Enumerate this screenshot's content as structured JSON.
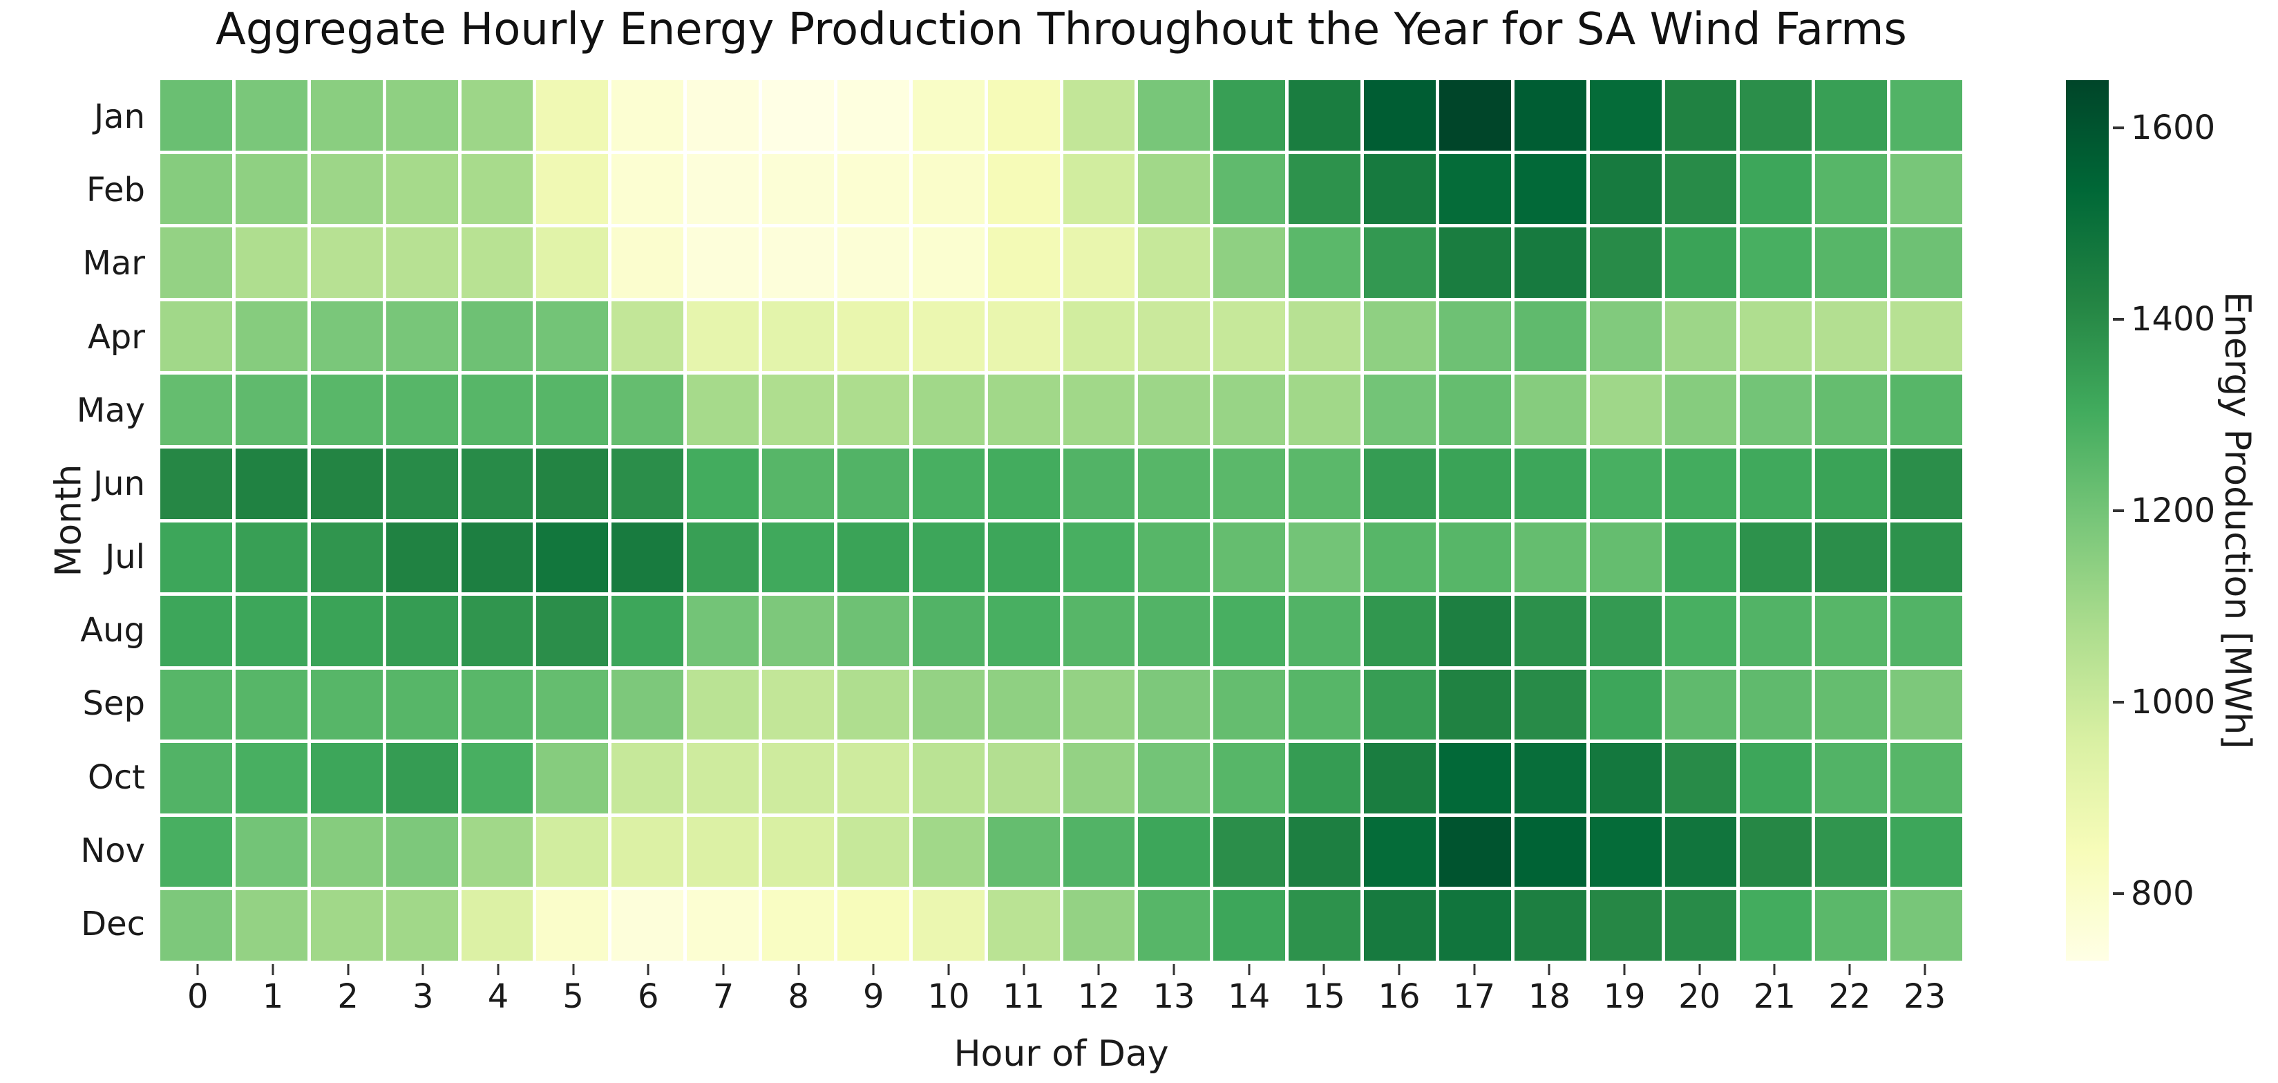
{
  "chart_data": {
    "type": "heatmap",
    "title": "Aggregate Hourly Energy Production Throughout the Year for SA Wind Farms",
    "xlabel": "Hour of Day",
    "ylabel": "Month",
    "colorbar_label": "Energy Production [MWh]",
    "x_labels": [
      "0",
      "1",
      "2",
      "3",
      "4",
      "5",
      "6",
      "7",
      "8",
      "9",
      "10",
      "11",
      "12",
      "13",
      "14",
      "15",
      "16",
      "17",
      "18",
      "19",
      "20",
      "21",
      "22",
      "23"
    ],
    "y_labels": [
      "Jan",
      "Feb",
      "Mar",
      "Apr",
      "May",
      "Jun",
      "Jul",
      "Aug",
      "Sep",
      "Oct",
      "Nov",
      "Dec"
    ],
    "vmin": 730,
    "vmax": 1650,
    "colorbar_ticks": [
      800,
      1000,
      1200,
      1400,
      1600
    ],
    "legend_position": "right",
    "grid": false,
    "colormap": {
      "name": "YlGn",
      "stops": [
        [
          0.0,
          "#ffffe5"
        ],
        [
          0.125,
          "#f7fcb9"
        ],
        [
          0.25,
          "#d9f0a3"
        ],
        [
          0.375,
          "#addd8e"
        ],
        [
          0.5,
          "#78c679"
        ],
        [
          0.625,
          "#41ab5d"
        ],
        [
          0.75,
          "#238443"
        ],
        [
          0.875,
          "#006837"
        ],
        [
          1.0,
          "#004529"
        ]
      ]
    },
    "values": [
      [
        1220,
        1185,
        1150,
        1140,
        1110,
        870,
        780,
        750,
        730,
        745,
        810,
        850,
        1020,
        1190,
        1340,
        1450,
        1570,
        1650,
        1570,
        1520,
        1430,
        1390,
        1340,
        1270
      ],
      [
        1160,
        1140,
        1110,
        1090,
        1085,
        870,
        780,
        760,
        770,
        780,
        800,
        850,
        980,
        1100,
        1240,
        1380,
        1460,
        1520,
        1530,
        1460,
        1400,
        1320,
        1260,
        1190
      ],
      [
        1130,
        1070,
        1050,
        1050,
        1045,
        930,
        790,
        760,
        760,
        770,
        785,
        860,
        900,
        1010,
        1140,
        1250,
        1360,
        1450,
        1460,
        1400,
        1330,
        1290,
        1260,
        1210
      ],
      [
        1100,
        1160,
        1185,
        1190,
        1210,
        1200,
        1020,
        910,
        920,
        900,
        890,
        900,
        980,
        1000,
        1010,
        1050,
        1140,
        1210,
        1240,
        1170,
        1110,
        1070,
        1060,
        1050
      ],
      [
        1230,
        1240,
        1255,
        1260,
        1260,
        1260,
        1230,
        1090,
        1070,
        1075,
        1100,
        1100,
        1100,
        1110,
        1120,
        1100,
        1200,
        1230,
        1160,
        1105,
        1160,
        1200,
        1230,
        1260
      ],
      [
        1410,
        1430,
        1420,
        1400,
        1400,
        1420,
        1390,
        1300,
        1260,
        1270,
        1290,
        1300,
        1270,
        1260,
        1250,
        1250,
        1350,
        1330,
        1320,
        1290,
        1300,
        1310,
        1330,
        1390
      ],
      [
        1320,
        1340,
        1370,
        1430,
        1440,
        1475,
        1455,
        1340,
        1310,
        1330,
        1320,
        1320,
        1290,
        1260,
        1230,
        1200,
        1260,
        1260,
        1230,
        1230,
        1320,
        1380,
        1390,
        1380
      ],
      [
        1320,
        1320,
        1330,
        1350,
        1370,
        1390,
        1320,
        1200,
        1180,
        1210,
        1270,
        1290,
        1260,
        1270,
        1290,
        1270,
        1365,
        1440,
        1385,
        1355,
        1290,
        1270,
        1260,
        1270
      ],
      [
        1260,
        1260,
        1260,
        1260,
        1255,
        1230,
        1180,
        1040,
        1020,
        1070,
        1130,
        1140,
        1130,
        1180,
        1230,
        1260,
        1345,
        1430,
        1400,
        1320,
        1240,
        1240,
        1230,
        1180
      ],
      [
        1270,
        1290,
        1320,
        1350,
        1290,
        1160,
        1010,
        990,
        990,
        990,
        1040,
        1060,
        1130,
        1200,
        1260,
        1350,
        1450,
        1530,
        1510,
        1470,
        1400,
        1320,
        1270,
        1260
      ],
      [
        1290,
        1200,
        1160,
        1180,
        1100,
        980,
        950,
        950,
        960,
        1010,
        1100,
        1230,
        1270,
        1320,
        1390,
        1440,
        1520,
        1600,
        1550,
        1520,
        1480,
        1410,
        1370,
        1320
      ],
      [
        1180,
        1130,
        1100,
        1100,
        950,
        800,
        760,
        780,
        820,
        840,
        890,
        1040,
        1130,
        1260,
        1320,
        1380,
        1460,
        1480,
        1440,
        1410,
        1400,
        1300,
        1250,
        1190
      ]
    ]
  }
}
